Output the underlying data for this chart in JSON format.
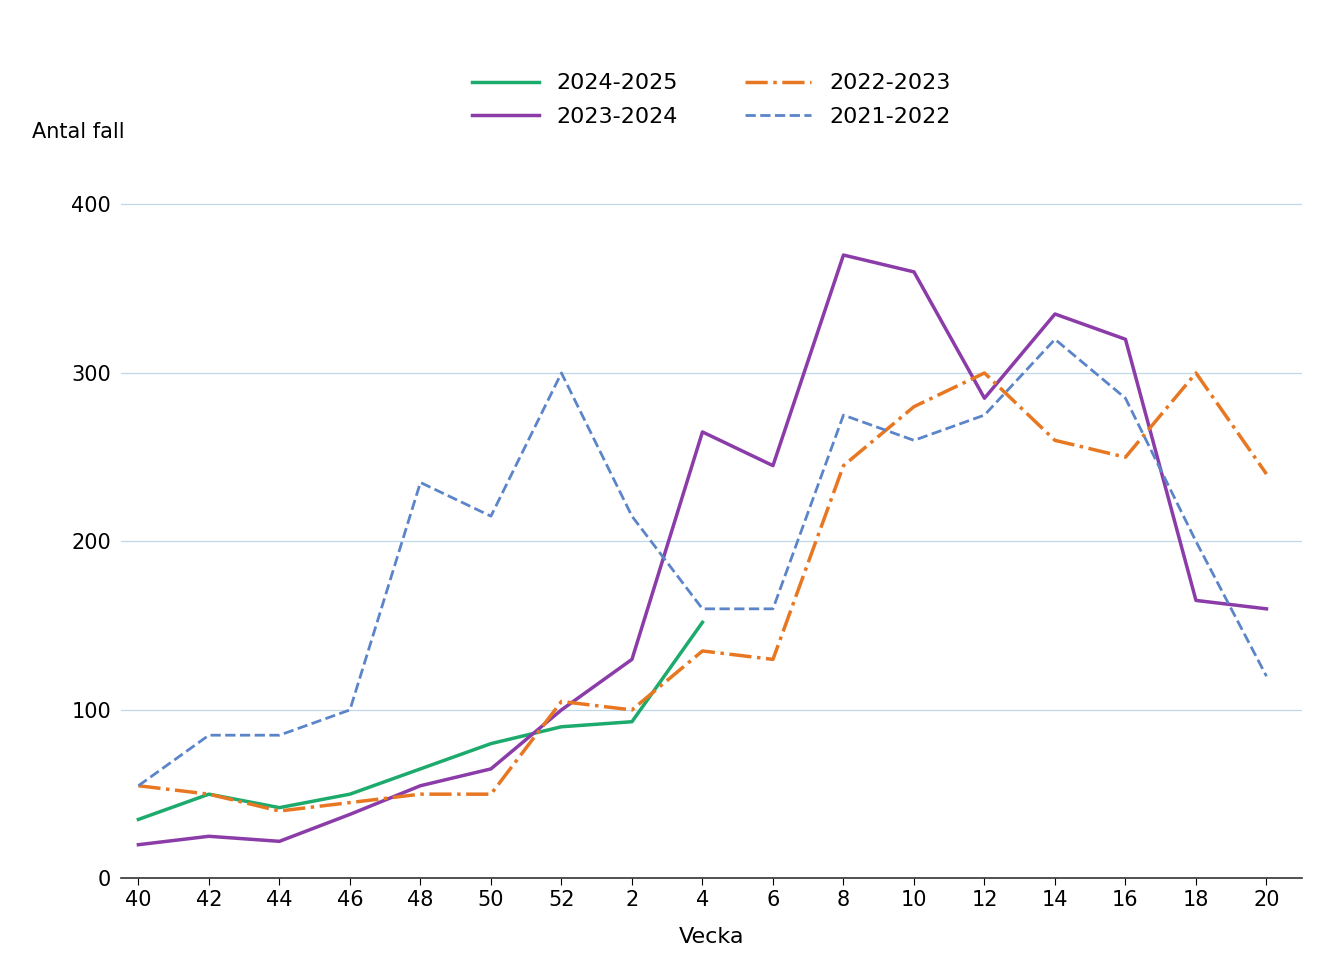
{
  "ylabel": "Antal fall",
  "xlabel": "Vecka",
  "x_tick_labels": [
    "40",
    "42",
    "44",
    "46",
    "48",
    "50",
    "52",
    "2",
    "4",
    "6",
    "8",
    "10",
    "12",
    "14",
    "16",
    "18",
    "20"
  ],
  "x_tick_positions": [
    0,
    2,
    4,
    6,
    8,
    10,
    12,
    14,
    16,
    18,
    20,
    22,
    24,
    26,
    28,
    30,
    32
  ],
  "ylim": [
    0,
    420
  ],
  "yticks": [
    0,
    100,
    200,
    300,
    400
  ],
  "series": {
    "2024-2025": {
      "color": "#1daa6d",
      "linestyle": "solid",
      "linewidth": 2.5,
      "x_pos": [
        0,
        2,
        4,
        6,
        8,
        10,
        12,
        14,
        16
      ],
      "y": [
        35,
        50,
        42,
        50,
        65,
        80,
        90,
        93,
        152
      ]
    },
    "2023-2024": {
      "color": "#8b3ca8",
      "linestyle": "solid",
      "linewidth": 2.5,
      "x_pos": [
        0,
        2,
        4,
        6,
        8,
        10,
        12,
        14,
        16,
        18,
        20,
        22,
        24,
        26,
        28,
        30,
        32
      ],
      "y": [
        20,
        25,
        22,
        38,
        55,
        65,
        100,
        130,
        265,
        245,
        370,
        360,
        285,
        335,
        320,
        165,
        160
      ]
    },
    "2022-2023": {
      "color": "#e87722",
      "linestyle": "dashdot",
      "linewidth": 2.5,
      "x_pos": [
        0,
        2,
        4,
        6,
        8,
        10,
        12,
        14,
        16,
        18,
        20,
        22,
        24,
        26,
        28,
        30,
        32
      ],
      "y": [
        55,
        50,
        40,
        45,
        50,
        50,
        105,
        100,
        135,
        130,
        245,
        280,
        300,
        260,
        250,
        300,
        240
      ]
    },
    "2021-2022": {
      "color": "#5b85c8",
      "linestyle": "dashed",
      "linewidth": 2.0,
      "x_pos": [
        0,
        2,
        4,
        6,
        8,
        10,
        12,
        14,
        16,
        18,
        20,
        22,
        24,
        26,
        28,
        30,
        32
      ],
      "y": [
        55,
        85,
        85,
        100,
        235,
        215,
        300,
        215,
        160,
        160,
        275,
        260,
        275,
        320,
        285,
        200,
        120
      ]
    }
  },
  "background_color": "#ffffff",
  "grid_color": "#c0d8e8",
  "legend": [
    {
      "label": "2024-2025",
      "color": "#1daa6d",
      "linestyle": "solid",
      "linewidth": 2.5
    },
    {
      "label": "2023-2024",
      "color": "#8b3ca8",
      "linestyle": "solid",
      "linewidth": 2.5
    },
    {
      "label": "2022-2023",
      "color": "#e87722",
      "linestyle": "dashdot",
      "linewidth": 2.5
    },
    {
      "label": "2021-2022",
      "color": "#5b85c8",
      "linestyle": "dashed",
      "linewidth": 2.0
    }
  ]
}
